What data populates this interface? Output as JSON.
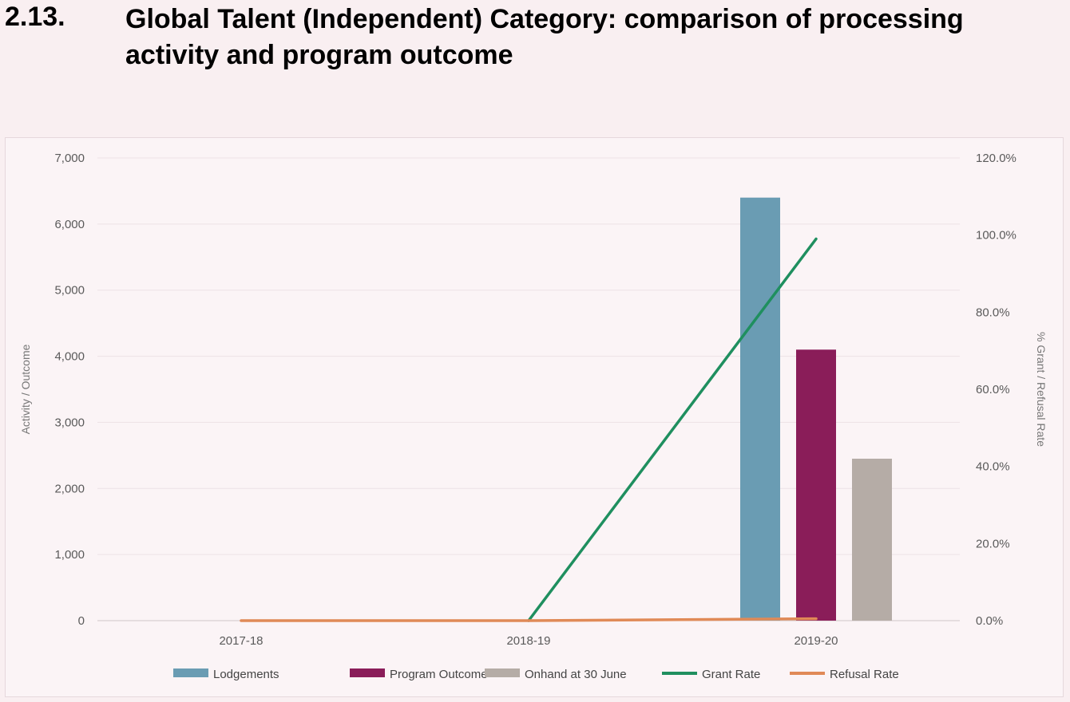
{
  "heading": {
    "number": "2.13.",
    "title": "Global Talent (Independent) Category: comparison of processing activity and program outcome"
  },
  "chart_data": {
    "type": "bar",
    "categories": [
      "2017-18",
      "2018-19",
      "2019-20"
    ],
    "series": [
      {
        "name": "Lodgements",
        "kind": "bar",
        "axis": "left",
        "color": "#6a9cb3",
        "values": [
          0,
          0,
          6400
        ]
      },
      {
        "name": "Program Outcome",
        "kind": "bar",
        "axis": "left",
        "color": "#8a1d59",
        "values": [
          0,
          0,
          4100
        ]
      },
      {
        "name": "Onhand at 30 June",
        "kind": "bar",
        "axis": "left",
        "color": "#b5aca6",
        "values": [
          0,
          0,
          2450
        ]
      },
      {
        "name": "Grant Rate",
        "kind": "line",
        "axis": "right",
        "color": "#1f8f5f",
        "values": [
          null,
          0.0,
          99.0
        ]
      },
      {
        "name": "Refusal Rate",
        "kind": "line",
        "axis": "right",
        "color": "#e08a57",
        "values": [
          0.0,
          0.0,
          0.5
        ]
      }
    ],
    "ylabel": "Activity / Outcome",
    "ylim": [
      0,
      7000
    ],
    "yticks": [
      "0",
      "1,000",
      "2,000",
      "3,000",
      "4,000",
      "5,000",
      "6,000",
      "7,000"
    ],
    "y2label": "% Grant / Refusal Rate",
    "y2lim": [
      0,
      120
    ],
    "y2ticks": [
      "0.0%",
      "20.0%",
      "40.0%",
      "60.0%",
      "80.0%",
      "100.0%",
      "120.0%"
    ],
    "grid": true,
    "legend_position": "bottom"
  }
}
